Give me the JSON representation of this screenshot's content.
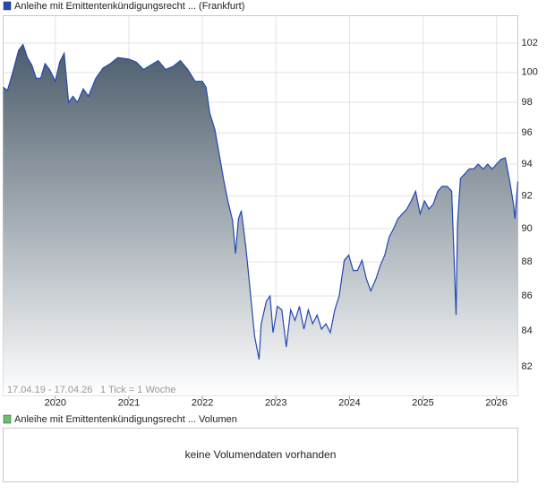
{
  "chart_data": [
    {
      "type": "area",
      "log_scale": true,
      "grid": true,
      "annotations": [
        "17.04.19 - 17.04.26",
        "1 Tick = 1 Woche"
      ],
      "xlim": [
        2019.29,
        2026.29
      ],
      "xticks": [
        2020,
        2021,
        2022,
        2023,
        2024,
        2025,
        2026
      ],
      "ylim": [
        80.4,
        103.9
      ],
      "yticks": [
        82,
        84,
        86,
        88,
        90,
        92,
        94,
        96,
        98,
        100,
        102
      ],
      "x": [
        2019.29,
        2019.35,
        2019.42,
        2019.5,
        2019.56,
        2019.62,
        2019.68,
        2019.74,
        2019.8,
        2019.86,
        2019.92,
        2020.0,
        2020.06,
        2020.12,
        2020.18,
        2020.24,
        2020.3,
        2020.38,
        2020.45,
        2020.55,
        2020.65,
        2020.75,
        2020.85,
        2021.0,
        2021.1,
        2021.2,
        2021.3,
        2021.4,
        2021.5,
        2021.6,
        2021.7,
        2021.8,
        2021.9,
        2022.0,
        2022.05,
        2022.1,
        2022.17,
        2022.23,
        2022.29,
        2022.35,
        2022.41,
        2022.45,
        2022.49,
        2022.53,
        2022.59,
        2022.65,
        2022.71,
        2022.77,
        2022.8,
        2022.87,
        2022.92,
        2022.96,
        2023.02,
        2023.08,
        2023.14,
        2023.2,
        2023.26,
        2023.32,
        2023.38,
        2023.44,
        2023.5,
        2023.56,
        2023.62,
        2023.68,
        2023.74,
        2023.8,
        2023.86,
        2023.93,
        2023.99,
        2024.05,
        2024.11,
        2024.17,
        2024.23,
        2024.29,
        2024.36,
        2024.42,
        2024.48,
        2024.54,
        2024.6,
        2024.66,
        2024.72,
        2024.78,
        2024.84,
        2024.9,
        2024.96,
        2025.02,
        2025.08,
        2025.14,
        2025.2,
        2025.26,
        2025.33,
        2025.39,
        2025.45,
        2025.47,
        2025.51,
        2025.57,
        2025.63,
        2025.69,
        2025.75,
        2025.82,
        2025.88,
        2025.94,
        2026.0,
        2026.06,
        2026.12,
        2026.18,
        2026.23,
        2026.25,
        2026.29
      ],
      "series": [
        {
          "name": "Anleihe mit Emittentenkündigungsrecht ... (Frankfurt)",
          "color": "#2448b0",
          "values": [
            99.0,
            98.8,
            100.0,
            101.5,
            101.9,
            101.0,
            100.5,
            99.6,
            99.6,
            100.6,
            100.2,
            99.4,
            100.7,
            101.3,
            98.0,
            98.4,
            98.0,
            98.9,
            98.4,
            99.6,
            100.3,
            100.6,
            101.0,
            100.9,
            100.7,
            100.2,
            100.5,
            100.8,
            100.2,
            100.4,
            100.8,
            100.2,
            99.4,
            99.4,
            99.0,
            97.3,
            96.2,
            94.6,
            93.0,
            91.6,
            90.5,
            88.5,
            90.6,
            91.1,
            88.9,
            86.3,
            83.7,
            82.4,
            84.4,
            85.7,
            86.0,
            83.9,
            85.4,
            85.2,
            83.1,
            85.2,
            84.6,
            85.4,
            84.1,
            85.2,
            84.4,
            84.9,
            84.1,
            84.4,
            83.9,
            85.2,
            86.0,
            88.1,
            88.4,
            87.5,
            87.5,
            88.1,
            87.0,
            86.3,
            87.0,
            87.8,
            88.4,
            89.5,
            90.0,
            90.6,
            90.9,
            91.2,
            91.7,
            92.3,
            90.9,
            91.7,
            91.2,
            91.5,
            92.3,
            92.6,
            92.6,
            92.3,
            84.9,
            90.3,
            93.1,
            93.4,
            93.7,
            93.7,
            94.0,
            93.7,
            94.0,
            93.7,
            94.0,
            94.3,
            94.4,
            92.9,
            91.5,
            90.6,
            92.9
          ]
        }
      ]
    },
    {
      "type": "bar",
      "annotation": "keine Volumendaten vorhanden",
      "series": [
        {
          "name": "Anleihe mit Emittentenkündigungsrecht ... Volumen",
          "color": "#6cbf6c",
          "values": []
        }
      ]
    }
  ]
}
